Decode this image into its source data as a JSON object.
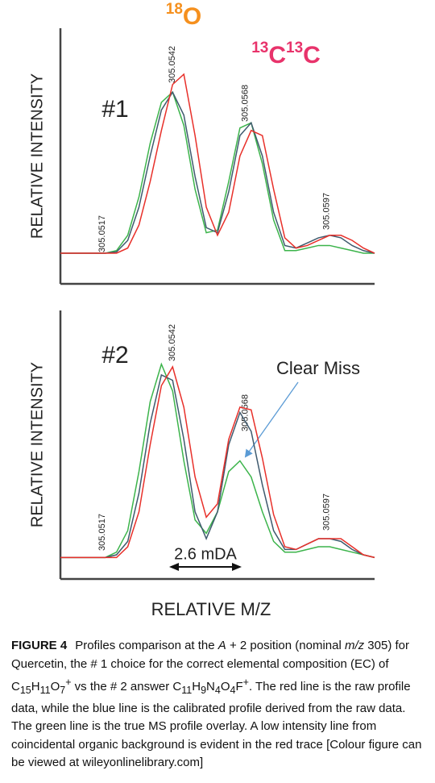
{
  "chart_data": [
    {
      "type": "line",
      "title": "#1",
      "y_label": "RELATIVE INTENSITY",
      "x": [
        305.0502,
        305.0506,
        305.051,
        305.0514,
        305.0518,
        305.0522,
        305.0526,
        305.053,
        305.0534,
        305.0538,
        305.0542,
        305.0546,
        305.055,
        305.0554,
        305.0558,
        305.0562,
        305.0566,
        305.057,
        305.0574,
        305.0578,
        305.0582,
        305.0586,
        305.059,
        305.0594,
        305.0598,
        305.0602,
        305.0606,
        305.061,
        305.0614
      ],
      "xlim": [
        305.0502,
        305.0614
      ],
      "ylim": [
        0,
        100
      ],
      "series": [
        {
          "color": "#3cb44b",
          "values": [
            12,
            12,
            12,
            12,
            12,
            13,
            19,
            34,
            55,
            71,
            75,
            62,
            37,
            20,
            21,
            40,
            61,
            63,
            47,
            25,
            13,
            13,
            14,
            15,
            15,
            14,
            13,
            12,
            12
          ]
        },
        {
          "color": "#3f5a6e",
          "values": [
            12,
            12,
            12,
            12,
            12,
            12.5,
            17,
            30,
            50,
            68,
            75,
            66,
            42,
            22,
            20,
            36,
            58,
            63,
            50,
            28,
            15,
            14,
            16,
            18,
            19,
            18,
            15,
            13,
            12
          ]
        },
        {
          "color": "#e8302a",
          "values": [
            12,
            12,
            12,
            12,
            12,
            12,
            14,
            23,
            40,
            60,
            78,
            82,
            58,
            30,
            19,
            28,
            50,
            60,
            58,
            37,
            18,
            14,
            15,
            17,
            19,
            19,
            17,
            14,
            12
          ]
        }
      ],
      "peak_labels": [
        305.0517,
        305.0542,
        305.0568,
        305.0597
      ],
      "isotope_labels": [
        {
          "parts": [
            "18",
            "O"
          ],
          "color": "#f5901e"
        },
        {
          "parts": [
            "13",
            "C",
            "13",
            "C"
          ],
          "color": "#e8336b"
        }
      ]
    },
    {
      "type": "line",
      "title": "#2",
      "y_label": "RELATIVE INTENSITY",
      "x_label": "RELATIVE M/Z",
      "x": [
        305.0502,
        305.0506,
        305.051,
        305.0514,
        305.0518,
        305.0522,
        305.0526,
        305.053,
        305.0534,
        305.0538,
        305.0542,
        305.0546,
        305.055,
        305.0554,
        305.0558,
        305.0562,
        305.0566,
        305.057,
        305.0574,
        305.0578,
        305.0582,
        305.0586,
        305.059,
        305.0594,
        305.0598,
        305.0602,
        305.0606,
        305.061,
        305.0614
      ],
      "xlim": [
        305.0502,
        305.0614
      ],
      "ylim": [
        0,
        100
      ],
      "series": [
        {
          "color": "#3cb44b",
          "values": [
            8,
            8,
            8,
            8,
            8,
            10,
            18,
            40,
            66,
            80,
            70,
            44,
            22,
            17,
            25,
            40,
            44,
            38,
            25,
            14,
            10,
            10,
            11,
            12,
            12,
            11,
            10,
            9,
            8
          ]
        },
        {
          "color": "#3f5a6e",
          "values": [
            8,
            8,
            8,
            8,
            8,
            9,
            14,
            32,
            58,
            76,
            74,
            52,
            25,
            15,
            25,
            50,
            62,
            55,
            35,
            18,
            11,
            11,
            13,
            15,
            15,
            14,
            11,
            9,
            8
          ]
        },
        {
          "color": "#e8302a",
          "values": [
            8,
            8,
            8,
            8,
            8,
            8,
            12,
            25,
            50,
            72,
            79,
            64,
            38,
            23,
            28,
            52,
            64,
            63,
            45,
            24,
            12,
            11,
            13,
            15,
            15,
            15,
            12,
            9,
            8
          ]
        }
      ],
      "peak_labels": [
        305.0517,
        305.0542,
        305.0568,
        305.0597
      ],
      "annotations": [
        "Clear Miss",
        "2.6 mDA"
      ]
    }
  ],
  "caption": {
    "label": "FIGURE 4",
    "segments": [
      {
        "text": "Profiles comparison at the "
      },
      {
        "text": "A",
        "style": "italic"
      },
      {
        "text": " + 2 position (nominal "
      },
      {
        "text": "m/z",
        "style": "italic"
      },
      {
        "text": " 305) for Quercetin, the # 1 choice for the correct elemental composition (EC) of C"
      },
      {
        "text": "15",
        "style": "sub"
      },
      {
        "text": "H"
      },
      {
        "text": "11",
        "style": "sub"
      },
      {
        "text": "O"
      },
      {
        "text": "7",
        "style": "sub"
      },
      {
        "text": "+",
        "style": "sup"
      },
      {
        "text": " vs the # 2 answer C"
      },
      {
        "text": "11",
        "style": "sub"
      },
      {
        "text": "H"
      },
      {
        "text": "9",
        "style": "sub"
      },
      {
        "text": "N"
      },
      {
        "text": "4",
        "style": "sub"
      },
      {
        "text": "O"
      },
      {
        "text": "4",
        "style": "sub"
      },
      {
        "text": "F"
      },
      {
        "text": "+",
        "style": "sup"
      },
      {
        "text": ". The red line is the raw profile data, while the blue line is the calibrated profile derived from the raw data. The green line is the true MS profile overlay. A low intensity line from coincidental organic background is evident in the red trace [Colour figure can be viewed at wileyonlinelibrary.com]"
      }
    ]
  }
}
